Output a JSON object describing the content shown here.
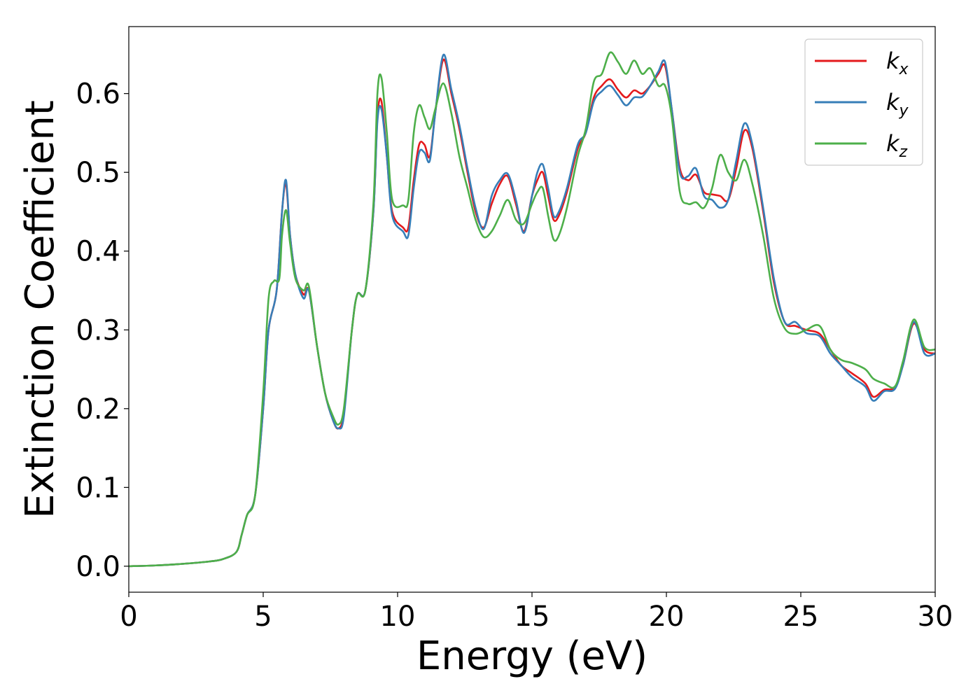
{
  "chart_data": {
    "type": "line",
    "title": "",
    "xlabel": "Energy (eV)",
    "ylabel": "Extinction Coefficient",
    "xlim": [
      0,
      30
    ],
    "ylim": [
      -0.033,
      0.685
    ],
    "xticks": [
      "0",
      "5",
      "10",
      "15",
      "20",
      "25",
      "30"
    ],
    "yticks": [
      "0.0",
      "0.1",
      "0.2",
      "0.3",
      "0.4",
      "0.5",
      "0.6"
    ],
    "grid": false,
    "legend_position": "top-right",
    "series": [
      {
        "name": "k_x",
        "label_main": "k",
        "label_sub": "x",
        "color": "#e41a1c",
        "points": [
          [
            0,
            0
          ],
          [
            1,
            0.001
          ],
          [
            2,
            0.003
          ],
          [
            3,
            0.006
          ],
          [
            3.5,
            0.009
          ],
          [
            4,
            0.018
          ],
          [
            4.2,
            0.04
          ],
          [
            4.4,
            0.065
          ],
          [
            4.7,
            0.09
          ],
          [
            5,
            0.2
          ],
          [
            5.2,
            0.3
          ],
          [
            5.5,
            0.35
          ],
          [
            5.7,
            0.45
          ],
          [
            5.85,
            0.485
          ],
          [
            6,
            0.42
          ],
          [
            6.2,
            0.37
          ],
          [
            6.5,
            0.345
          ],
          [
            6.7,
            0.35
          ],
          [
            7,
            0.28
          ],
          [
            7.3,
            0.22
          ],
          [
            7.6,
            0.185
          ],
          [
            7.8,
            0.175
          ],
          [
            8,
            0.195
          ],
          [
            8.3,
            0.3
          ],
          [
            8.5,
            0.345
          ],
          [
            8.8,
            0.35
          ],
          [
            9.1,
            0.45
          ],
          [
            9.25,
            0.57
          ],
          [
            9.4,
            0.59
          ],
          [
            9.6,
            0.52
          ],
          [
            9.8,
            0.45
          ],
          [
            10.2,
            0.43
          ],
          [
            10.4,
            0.43
          ],
          [
            10.6,
            0.49
          ],
          [
            10.8,
            0.535
          ],
          [
            11.0,
            0.535
          ],
          [
            11.2,
            0.52
          ],
          [
            11.4,
            0.575
          ],
          [
            11.7,
            0.643
          ],
          [
            12.0,
            0.6
          ],
          [
            12.3,
            0.555
          ],
          [
            12.6,
            0.5
          ],
          [
            12.9,
            0.45
          ],
          [
            13.2,
            0.43
          ],
          [
            13.5,
            0.46
          ],
          [
            13.8,
            0.485
          ],
          [
            14.1,
            0.495
          ],
          [
            14.4,
            0.46
          ],
          [
            14.7,
            0.425
          ],
          [
            15.0,
            0.47
          ],
          [
            15.2,
            0.49
          ],
          [
            15.4,
            0.5
          ],
          [
            15.6,
            0.47
          ],
          [
            15.8,
            0.44
          ],
          [
            16.0,
            0.445
          ],
          [
            16.3,
            0.475
          ],
          [
            16.7,
            0.53
          ],
          [
            17.0,
            0.55
          ],
          [
            17.3,
            0.595
          ],
          [
            17.6,
            0.61
          ],
          [
            17.9,
            0.618
          ],
          [
            18.2,
            0.605
          ],
          [
            18.5,
            0.595
          ],
          [
            18.8,
            0.604
          ],
          [
            19.1,
            0.6
          ],
          [
            19.4,
            0.61
          ],
          [
            19.7,
            0.625
          ],
          [
            19.95,
            0.635
          ],
          [
            20.2,
            0.58
          ],
          [
            20.5,
            0.505
          ],
          [
            20.8,
            0.49
          ],
          [
            21.1,
            0.497
          ],
          [
            21.4,
            0.475
          ],
          [
            21.7,
            0.472
          ],
          [
            22.0,
            0.47
          ],
          [
            22.3,
            0.465
          ],
          [
            22.6,
            0.505
          ],
          [
            22.9,
            0.553
          ],
          [
            23.2,
            0.53
          ],
          [
            23.6,
            0.45
          ],
          [
            24.0,
            0.36
          ],
          [
            24.4,
            0.31
          ],
          [
            24.8,
            0.305
          ],
          [
            25.2,
            0.3
          ],
          [
            25.7,
            0.295
          ],
          [
            26.1,
            0.275
          ],
          [
            26.5,
            0.255
          ],
          [
            26.9,
            0.245
          ],
          [
            27.4,
            0.232
          ],
          [
            27.7,
            0.215
          ],
          [
            28.1,
            0.224
          ],
          [
            28.5,
            0.227
          ],
          [
            28.8,
            0.255
          ],
          [
            29.2,
            0.308
          ],
          [
            29.6,
            0.275
          ],
          [
            30,
            0.27
          ]
        ]
      },
      {
        "name": "k_y",
        "label_main": "k",
        "label_sub": "y",
        "color": "#377eb8",
        "points": [
          [
            0,
            0
          ],
          [
            1,
            0.001
          ],
          [
            2,
            0.003
          ],
          [
            3,
            0.006
          ],
          [
            3.5,
            0.009
          ],
          [
            4,
            0.018
          ],
          [
            4.2,
            0.04
          ],
          [
            4.4,
            0.065
          ],
          [
            4.7,
            0.09
          ],
          [
            5,
            0.2
          ],
          [
            5.2,
            0.3
          ],
          [
            5.5,
            0.35
          ],
          [
            5.7,
            0.45
          ],
          [
            5.85,
            0.49
          ],
          [
            6,
            0.42
          ],
          [
            6.2,
            0.37
          ],
          [
            6.5,
            0.34
          ],
          [
            6.7,
            0.35
          ],
          [
            7,
            0.28
          ],
          [
            7.3,
            0.22
          ],
          [
            7.6,
            0.185
          ],
          [
            7.8,
            0.175
          ],
          [
            8,
            0.19
          ],
          [
            8.3,
            0.3
          ],
          [
            8.5,
            0.345
          ],
          [
            8.8,
            0.35
          ],
          [
            9.1,
            0.45
          ],
          [
            9.25,
            0.565
          ],
          [
            9.4,
            0.58
          ],
          [
            9.6,
            0.52
          ],
          [
            9.8,
            0.445
          ],
          [
            10.2,
            0.425
          ],
          [
            10.4,
            0.42
          ],
          [
            10.6,
            0.48
          ],
          [
            10.8,
            0.525
          ],
          [
            11.0,
            0.525
          ],
          [
            11.2,
            0.515
          ],
          [
            11.4,
            0.575
          ],
          [
            11.7,
            0.649
          ],
          [
            12.0,
            0.605
          ],
          [
            12.3,
            0.56
          ],
          [
            12.6,
            0.505
          ],
          [
            12.9,
            0.455
          ],
          [
            13.2,
            0.428
          ],
          [
            13.5,
            0.47
          ],
          [
            13.8,
            0.49
          ],
          [
            14.1,
            0.498
          ],
          [
            14.4,
            0.465
          ],
          [
            14.7,
            0.423
          ],
          [
            15.0,
            0.47
          ],
          [
            15.2,
            0.5
          ],
          [
            15.4,
            0.51
          ],
          [
            15.6,
            0.48
          ],
          [
            15.8,
            0.445
          ],
          [
            16.0,
            0.45
          ],
          [
            16.3,
            0.48
          ],
          [
            16.7,
            0.535
          ],
          [
            17.0,
            0.55
          ],
          [
            17.3,
            0.59
          ],
          [
            17.6,
            0.603
          ],
          [
            17.9,
            0.61
          ],
          [
            18.2,
            0.598
          ],
          [
            18.5,
            0.585
          ],
          [
            18.8,
            0.595
          ],
          [
            19.1,
            0.596
          ],
          [
            19.4,
            0.61
          ],
          [
            19.7,
            0.628
          ],
          [
            19.95,
            0.64
          ],
          [
            20.2,
            0.58
          ],
          [
            20.5,
            0.5
          ],
          [
            20.8,
            0.495
          ],
          [
            21.1,
            0.505
          ],
          [
            21.4,
            0.47
          ],
          [
            21.7,
            0.465
          ],
          [
            22.0,
            0.455
          ],
          [
            22.3,
            0.465
          ],
          [
            22.6,
            0.515
          ],
          [
            22.9,
            0.562
          ],
          [
            23.2,
            0.535
          ],
          [
            23.6,
            0.455
          ],
          [
            24.0,
            0.365
          ],
          [
            24.4,
            0.31
          ],
          [
            24.8,
            0.31
          ],
          [
            25.2,
            0.296
          ],
          [
            25.7,
            0.292
          ],
          [
            26.1,
            0.27
          ],
          [
            26.5,
            0.255
          ],
          [
            26.9,
            0.24
          ],
          [
            27.4,
            0.228
          ],
          [
            27.7,
            0.21
          ],
          [
            28.1,
            0.222
          ],
          [
            28.5,
            0.225
          ],
          [
            28.8,
            0.255
          ],
          [
            29.2,
            0.31
          ],
          [
            29.6,
            0.27
          ],
          [
            30,
            0.27
          ]
        ]
      },
      {
        "name": "k_z",
        "label_main": "k",
        "label_sub": "z",
        "color": "#4daf4a",
        "points": [
          [
            0,
            0
          ],
          [
            1,
            0.001
          ],
          [
            2,
            0.003
          ],
          [
            3,
            0.006
          ],
          [
            3.5,
            0.009
          ],
          [
            4,
            0.018
          ],
          [
            4.2,
            0.04
          ],
          [
            4.4,
            0.065
          ],
          [
            4.7,
            0.09
          ],
          [
            5,
            0.22
          ],
          [
            5.2,
            0.34
          ],
          [
            5.4,
            0.362
          ],
          [
            5.6,
            0.365
          ],
          [
            5.7,
            0.42
          ],
          [
            5.85,
            0.452
          ],
          [
            6,
            0.41
          ],
          [
            6.2,
            0.365
          ],
          [
            6.5,
            0.35
          ],
          [
            6.7,
            0.355
          ],
          [
            7,
            0.28
          ],
          [
            7.3,
            0.22
          ],
          [
            7.6,
            0.19
          ],
          [
            7.8,
            0.18
          ],
          [
            8,
            0.2
          ],
          [
            8.3,
            0.3
          ],
          [
            8.5,
            0.345
          ],
          [
            8.8,
            0.35
          ],
          [
            9.1,
            0.46
          ],
          [
            9.25,
            0.6
          ],
          [
            9.4,
            0.62
          ],
          [
            9.6,
            0.55
          ],
          [
            9.8,
            0.465
          ],
          [
            10.2,
            0.458
          ],
          [
            10.4,
            0.465
          ],
          [
            10.6,
            0.55
          ],
          [
            10.8,
            0.585
          ],
          [
            11.0,
            0.57
          ],
          [
            11.2,
            0.555
          ],
          [
            11.4,
            0.58
          ],
          [
            11.7,
            0.613
          ],
          [
            12.0,
            0.575
          ],
          [
            12.3,
            0.52
          ],
          [
            12.6,
            0.48
          ],
          [
            12.9,
            0.44
          ],
          [
            13.2,
            0.418
          ],
          [
            13.5,
            0.425
          ],
          [
            13.8,
            0.445
          ],
          [
            14.1,
            0.465
          ],
          [
            14.4,
            0.44
          ],
          [
            14.7,
            0.435
          ],
          [
            15.0,
            0.46
          ],
          [
            15.2,
            0.475
          ],
          [
            15.4,
            0.48
          ],
          [
            15.6,
            0.445
          ],
          [
            15.8,
            0.415
          ],
          [
            16.0,
            0.42
          ],
          [
            16.3,
            0.455
          ],
          [
            16.7,
            0.52
          ],
          [
            17.0,
            0.555
          ],
          [
            17.3,
            0.615
          ],
          [
            17.6,
            0.625
          ],
          [
            17.9,
            0.652
          ],
          [
            18.2,
            0.64
          ],
          [
            18.5,
            0.625
          ],
          [
            18.8,
            0.642
          ],
          [
            19.1,
            0.625
          ],
          [
            19.4,
            0.632
          ],
          [
            19.7,
            0.61
          ],
          [
            19.95,
            0.61
          ],
          [
            20.2,
            0.57
          ],
          [
            20.5,
            0.475
          ],
          [
            20.8,
            0.46
          ],
          [
            21.1,
            0.462
          ],
          [
            21.4,
            0.455
          ],
          [
            21.7,
            0.48
          ],
          [
            22.0,
            0.522
          ],
          [
            22.3,
            0.5
          ],
          [
            22.6,
            0.49
          ],
          [
            22.9,
            0.516
          ],
          [
            23.2,
            0.485
          ],
          [
            23.6,
            0.42
          ],
          [
            24.0,
            0.34
          ],
          [
            24.4,
            0.302
          ],
          [
            24.8,
            0.295
          ],
          [
            25.2,
            0.3
          ],
          [
            25.7,
            0.305
          ],
          [
            26.1,
            0.275
          ],
          [
            26.5,
            0.262
          ],
          [
            26.9,
            0.258
          ],
          [
            27.4,
            0.25
          ],
          [
            27.7,
            0.238
          ],
          [
            28.1,
            0.232
          ],
          [
            28.5,
            0.228
          ],
          [
            28.8,
            0.26
          ],
          [
            29.2,
            0.313
          ],
          [
            29.6,
            0.278
          ],
          [
            30,
            0.275
          ]
        ]
      }
    ]
  }
}
